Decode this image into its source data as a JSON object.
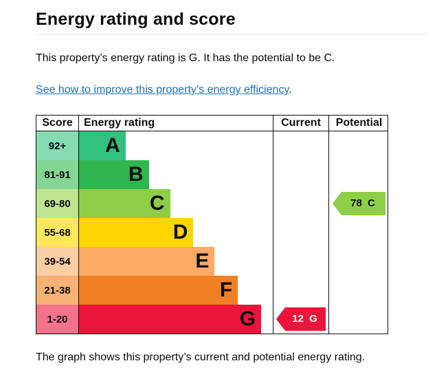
{
  "page": {
    "title": "Energy rating and score",
    "intro": "This property’s energy rating is G. It has the potential to be C.",
    "improve_link": "See how to improve this property’s energy efficiency",
    "improve_suffix": ".",
    "footer_note": "The graph shows this property’s current and potential energy rating."
  },
  "table": {
    "headers": {
      "score": "Score",
      "rating": "Energy rating",
      "current": "Current",
      "potential": "Potential"
    }
  },
  "bands": [
    {
      "score": "92+",
      "letter": "A",
      "color": "#33c17f",
      "tint": "#85dcb3",
      "width": "24%"
    },
    {
      "score": "81-91",
      "letter": "B",
      "color": "#2fb64e",
      "tint": "#83d694",
      "width": "36%"
    },
    {
      "score": "69-80",
      "letter": "C",
      "color": "#8dce46",
      "tint": "#bfe492",
      "width": "47%"
    },
    {
      "score": "55-68",
      "letter": "D",
      "color": "#ffd500",
      "tint": "#ffe75c",
      "width": "59%"
    },
    {
      "score": "39-54",
      "letter": "E",
      "color": "#fcaa65",
      "tint": "#fdcda3",
      "width": "70%"
    },
    {
      "score": "21-38",
      "letter": "F",
      "color": "#ef8023",
      "tint": "#f6b174",
      "width": "82%"
    },
    {
      "score": "1-20",
      "letter": "G",
      "color": "#e9153b",
      "tint": "#f3738b",
      "width": "94%"
    }
  ],
  "markers": {
    "current": {
      "label": "12 G",
      "color": "#e9153b",
      "text_color": "#ffffff"
    },
    "potential": {
      "label": "78 C",
      "color": "#8dce46",
      "text_color": "#0b0c0c"
    }
  },
  "chart_data": {
    "type": "bar",
    "title": "Energy rating and score",
    "categories": [
      "A",
      "B",
      "C",
      "D",
      "E",
      "F",
      "G"
    ],
    "score_ranges": [
      "92+",
      "81-91",
      "69-80",
      "55-68",
      "39-54",
      "21-38",
      "1-20"
    ],
    "bar_width_pct": [
      24,
      36,
      47,
      59,
      70,
      82,
      94
    ],
    "band_colors": [
      "#33c17f",
      "#2fb64e",
      "#8dce46",
      "#ffd500",
      "#fcaa65",
      "#ef8023",
      "#e9153b"
    ],
    "columns": [
      "Score",
      "Energy rating",
      "Current",
      "Potential"
    ],
    "current": {
      "score": 12,
      "band": "G",
      "row": "1-20"
    },
    "potential": {
      "score": 78,
      "band": "C",
      "row": "69-80"
    },
    "legend_position": "none",
    "grid": false
  }
}
